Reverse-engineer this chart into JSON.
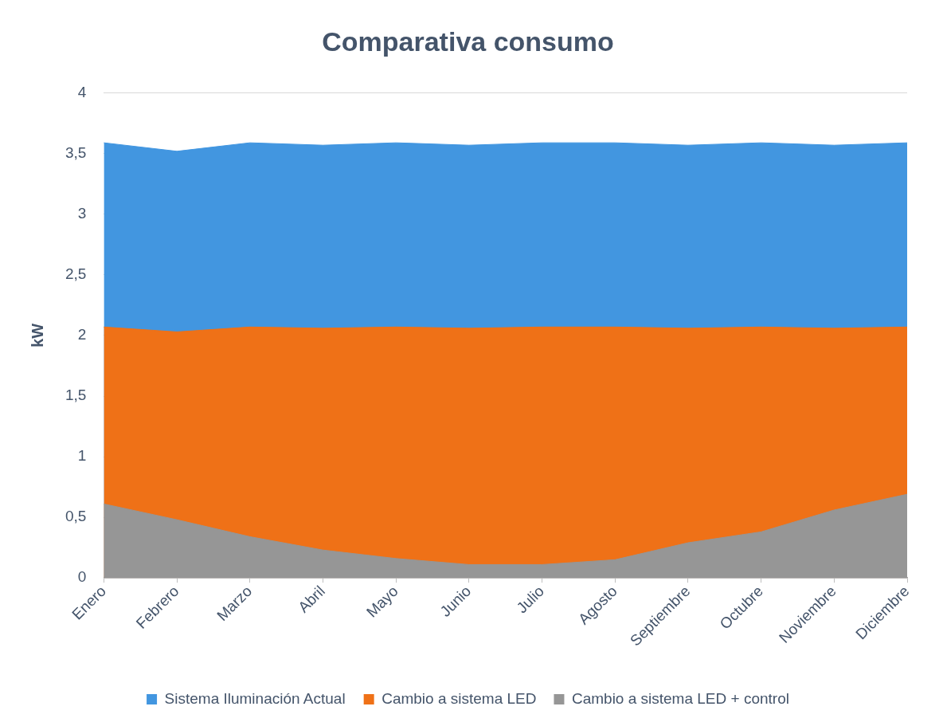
{
  "chart_data": {
    "type": "area",
    "title": "Comparativa consumo",
    "ylabel": "kW",
    "categories": [
      "Enero",
      "Febrero",
      "Marzo",
      "Abril",
      "Mayo",
      "Junio",
      "Julio",
      "Agosto",
      "Septiembre",
      "Octubre",
      "Noviembre",
      "Diciembre"
    ],
    "series": [
      {
        "name": "Sistema Iluminación Actual",
        "color": "#4296e0",
        "values": [
          3.59,
          3.52,
          3.59,
          3.57,
          3.59,
          3.57,
          3.59,
          3.59,
          3.57,
          3.59,
          3.57,
          3.59
        ]
      },
      {
        "name": "Cambio a sistema LED",
        "color": "#ef7117",
        "values": [
          2.07,
          2.03,
          2.07,
          2.06,
          2.07,
          2.06,
          2.07,
          2.07,
          2.06,
          2.07,
          2.06,
          2.07
        ]
      },
      {
        "name": "Cambio a sistema LED + control",
        "color": "#969696",
        "values": [
          0.61,
          0.48,
          0.34,
          0.23,
          0.16,
          0.11,
          0.11,
          0.15,
          0.29,
          0.38,
          0.56,
          0.69
        ]
      }
    ],
    "ylim": [
      0,
      4
    ],
    "yticks": [
      0,
      {
        "value": 0.5,
        "label": "0,5"
      },
      1,
      {
        "value": 1.5,
        "label": "1,5"
      },
      2,
      {
        "value": 2.5,
        "label": "2,5"
      },
      3,
      {
        "value": 3.5,
        "label": "3,5"
      },
      4
    ],
    "grid": "y",
    "legend": "bottom"
  }
}
